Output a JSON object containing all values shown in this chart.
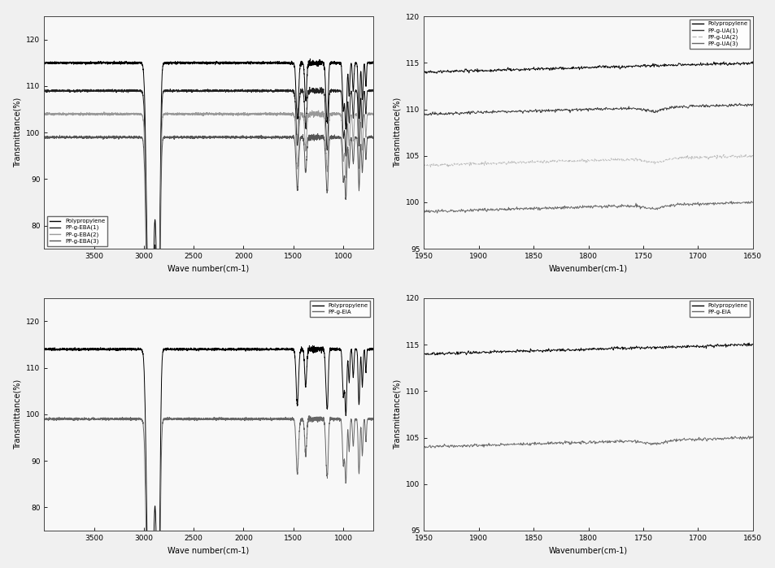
{
  "fig_size": [
    9.54,
    6.99
  ],
  "dpi": 100,
  "background_color": "#f0f0f0",
  "top_left": {
    "xlim": [
      4000,
      700
    ],
    "ylim": [
      75,
      125
    ],
    "yticks": [
      80,
      90,
      100,
      110,
      120
    ],
    "xticks": [
      3500,
      3000,
      2500,
      2000,
      1500,
      1000
    ],
    "xlabel": "Wave number(cm-1)",
    "ylabel": "Transmittance(%)",
    "legend": [
      "Polypropylene",
      "PP-g-EBA(1)",
      "PP-g-EBA(2)",
      "PP-g-EBA(3)"
    ],
    "legend_colors": [
      "#000000",
      "#222222",
      "#999999",
      "#555555"
    ],
    "baseline_levels": [
      115,
      109,
      104,
      99
    ],
    "legend_loc": "lower left"
  },
  "top_right": {
    "xlim": [
      1950,
      1650
    ],
    "ylim": [
      95,
      120
    ],
    "yticks": [
      95,
      100,
      105,
      110,
      115,
      120
    ],
    "xticks": [
      1950,
      1900,
      1850,
      1800,
      1750,
      1700,
      1650
    ],
    "xlabel": "Wavenumber(cm-1)",
    "ylabel": "Transmittance(%)",
    "legend": [
      "Polypropylene",
      "PP-g-UA(1)",
      "PP-g-UA(2)",
      "PP-g-UA(3)"
    ],
    "legend_colors": [
      "#000000",
      "#333333",
      "#bbbbbb",
      "#666666"
    ],
    "baseline_levels": [
      114,
      109.5,
      104,
      99
    ],
    "legend_loc": "upper right"
  },
  "bottom_left": {
    "xlim": [
      4000,
      700
    ],
    "ylim": [
      75,
      125
    ],
    "yticks": [
      80,
      90,
      100,
      110,
      120
    ],
    "xticks": [
      3500,
      3000,
      2500,
      2000,
      1500,
      1000
    ],
    "xlabel": "Wave number(cm-1)",
    "ylabel": "Transmittance(%)",
    "legend": [
      "Polypropylene",
      "PP-g-EIA"
    ],
    "legend_colors": [
      "#000000",
      "#666666"
    ],
    "baseline_levels": [
      114,
      99
    ],
    "legend_loc": "upper right"
  },
  "bottom_right": {
    "xlim": [
      1950,
      1650
    ],
    "ylim": [
      95,
      120
    ],
    "yticks": [
      95,
      100,
      105,
      110,
      115,
      120
    ],
    "xticks": [
      1950,
      1900,
      1850,
      1800,
      1750,
      1700,
      1650
    ],
    "xlabel": "Wavenumber(cm-1)",
    "ylabel": "Transmittance(%)",
    "legend": [
      "Polypropylene",
      "PP-g-EIA"
    ],
    "legend_colors": [
      "#000000",
      "#666666"
    ],
    "baseline_levels": [
      114,
      104
    ],
    "legend_loc": "upper right"
  }
}
